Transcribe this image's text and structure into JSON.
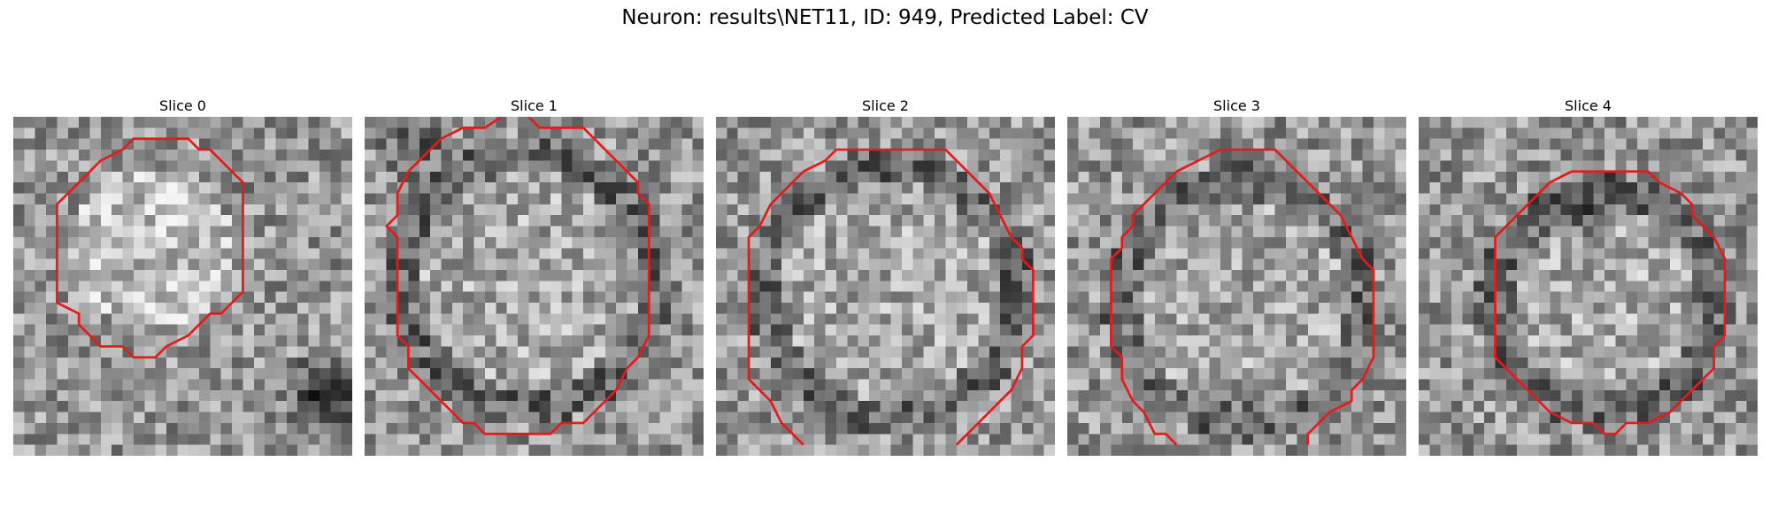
{
  "figure": {
    "title": "Neuron: results\\NET11, ID: 949, Predicted Label: CV"
  },
  "panels": [
    {
      "title": "Slice 0",
      "seed": 11,
      "variant": "s0"
    },
    {
      "title": "Slice 1",
      "seed": 23,
      "variant": "s1"
    },
    {
      "title": "Slice 2",
      "seed": 37,
      "variant": "s2"
    },
    {
      "title": "Slice 3",
      "seed": 41,
      "variant": "s3"
    },
    {
      "title": "Slice 4",
      "seed": 59,
      "variant": "s4"
    }
  ],
  "colors": {
    "contour": "#e41a1c",
    "background": "#ffffff"
  },
  "grid_size": 31
}
